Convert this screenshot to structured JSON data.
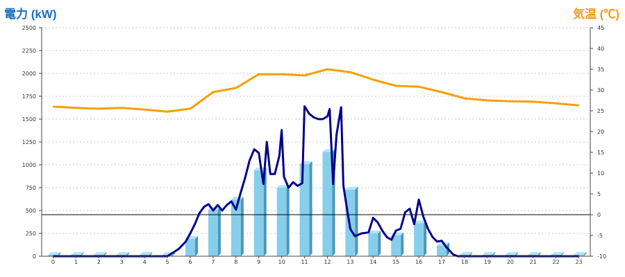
{
  "titles": {
    "left": "電力 (kW)",
    "right": "気温 (℃)"
  },
  "chart_data": {
    "type": "bar+line",
    "x_categories": [
      "0",
      "1",
      "2",
      "3",
      "4",
      "5",
      "6",
      "7",
      "8",
      "9",
      "10",
      "11",
      "12",
      "13",
      "14",
      "15",
      "16",
      "17",
      "18",
      "19",
      "20",
      "21",
      "22",
      "23"
    ],
    "left_axis": {
      "label": "電力 (kW)",
      "ticks": [
        0,
        250,
        500,
        750,
        1000,
        1250,
        1500,
        1750,
        2000,
        2250,
        2500
      ],
      "ylim": [
        0,
        2500
      ]
    },
    "right_axis": {
      "label": "気温 (℃)",
      "ticks": [
        -10,
        -5,
        0,
        5,
        10,
        15,
        20,
        25,
        30,
        35,
        40,
        45
      ],
      "ylim": [
        -10,
        45
      ]
    },
    "grid": "horizontal dashed",
    "series": [
      {
        "kind": "bar",
        "axis": "left",
        "color": "#87ceeb",
        "values": [
          0,
          0,
          0,
          0,
          0,
          0,
          190,
          510,
          620,
          940,
          750,
          1010,
          1140,
          730,
          250,
          230,
          360,
          120,
          0,
          0,
          0,
          0,
          0,
          0
        ]
      },
      {
        "kind": "line",
        "axis": "left",
        "color": "#00008b",
        "points": [
          [
            0,
            0
          ],
          [
            1,
            0
          ],
          [
            2,
            0
          ],
          [
            3,
            0
          ],
          [
            4,
            0
          ],
          [
            5,
            0
          ],
          [
            5.5,
            80
          ],
          [
            5.8,
            160
          ],
          [
            6,
            250
          ],
          [
            6.2,
            350
          ],
          [
            6.4,
            470
          ],
          [
            6.6,
            540
          ],
          [
            6.8,
            570
          ],
          [
            7,
            500
          ],
          [
            7.2,
            560
          ],
          [
            7.4,
            500
          ],
          [
            7.6,
            560
          ],
          [
            7.8,
            600
          ],
          [
            8,
            510
          ],
          [
            8.2,
            690
          ],
          [
            8.4,
            860
          ],
          [
            8.6,
            1050
          ],
          [
            8.8,
            1170
          ],
          [
            9,
            1130
          ],
          [
            9.2,
            790
          ],
          [
            9.35,
            1250
          ],
          [
            9.5,
            900
          ],
          [
            9.7,
            900
          ],
          [
            9.9,
            1100
          ],
          [
            10,
            1380
          ],
          [
            10.1,
            870
          ],
          [
            10.3,
            750
          ],
          [
            10.5,
            810
          ],
          [
            10.7,
            770
          ],
          [
            10.9,
            800
          ],
          [
            11,
            1640
          ],
          [
            11.2,
            1560
          ],
          [
            11.4,
            1520
          ],
          [
            11.6,
            1500
          ],
          [
            11.8,
            1500
          ],
          [
            12,
            1530
          ],
          [
            12.1,
            1610
          ],
          [
            12.25,
            790
          ],
          [
            12.4,
            1330
          ],
          [
            12.6,
            1630
          ],
          [
            12.7,
            770
          ],
          [
            12.9,
            450
          ],
          [
            13,
            300
          ],
          [
            13.2,
            220
          ],
          [
            13.5,
            250
          ],
          [
            13.8,
            260
          ],
          [
            14,
            420
          ],
          [
            14.2,
            370
          ],
          [
            14.4,
            280
          ],
          [
            14.6,
            210
          ],
          [
            14.8,
            180
          ],
          [
            15,
            280
          ],
          [
            15.2,
            300
          ],
          [
            15.4,
            480
          ],
          [
            15.6,
            520
          ],
          [
            15.8,
            350
          ],
          [
            16,
            620
          ],
          [
            16.2,
            430
          ],
          [
            16.4,
            300
          ],
          [
            16.6,
            210
          ],
          [
            16.8,
            160
          ],
          [
            17,
            170
          ],
          [
            17.2,
            100
          ],
          [
            17.5,
            20
          ],
          [
            17.7,
            0
          ],
          [
            18,
            0
          ],
          [
            19,
            0
          ],
          [
            20,
            0
          ],
          [
            21,
            0
          ],
          [
            22,
            0
          ],
          [
            23,
            0
          ]
        ]
      },
      {
        "kind": "line",
        "axis": "right",
        "color": "#f5a000",
        "points": [
          [
            0,
            26
          ],
          [
            1,
            25.7
          ],
          [
            2,
            25.5
          ],
          [
            3,
            25.7
          ],
          [
            4,
            25.3
          ],
          [
            5,
            24.8
          ],
          [
            6,
            25.5
          ],
          [
            7,
            29.5
          ],
          [
            8,
            30.5
          ],
          [
            9,
            33.8
          ],
          [
            10,
            33.8
          ],
          [
            11,
            33.5
          ],
          [
            12,
            35.0
          ],
          [
            13,
            34.3
          ],
          [
            14,
            32.5
          ],
          [
            15,
            31
          ],
          [
            16,
            30.8
          ],
          [
            17,
            29.5
          ],
          [
            18,
            28
          ],
          [
            19,
            27.5
          ],
          [
            20,
            27.3
          ],
          [
            21,
            27.2
          ],
          [
            22,
            26.8
          ],
          [
            23,
            26.3
          ]
        ]
      }
    ]
  }
}
